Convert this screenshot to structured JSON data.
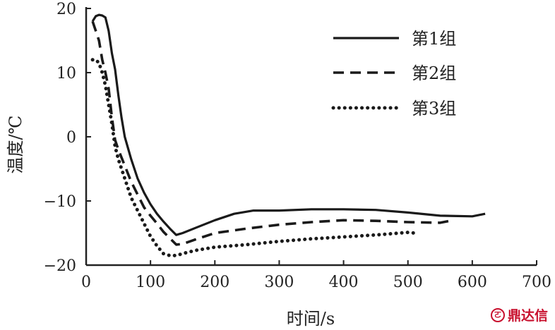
{
  "chart_data": {
    "type": "line",
    "title": "",
    "xlabel": "时间/s",
    "ylabel": "温度/℃",
    "xlim": [
      0,
      700
    ],
    "ylim": [
      -20,
      20
    ],
    "xticks": [
      0,
      100,
      200,
      300,
      400,
      500,
      600,
      700
    ],
    "yticks": [
      20,
      10,
      0,
      -10,
      -20
    ],
    "ytick_labels": [
      "20",
      "10",
      "0",
      "−10",
      "−20"
    ],
    "grid": false,
    "legend_position": "top-right",
    "series": [
      {
        "name": "第1组",
        "style": "solid",
        "x": [
          10,
          15,
          20,
          25,
          30,
          35,
          40,
          45,
          50,
          55,
          60,
          70,
          80,
          90,
          100,
          110,
          120,
          130,
          140,
          150,
          170,
          200,
          230,
          260,
          300,
          350,
          400,
          450,
          500,
          550,
          600,
          620
        ],
        "y": [
          18,
          18.8,
          19,
          18.9,
          18.6,
          16.5,
          13,
          10.5,
          6.5,
          3,
          0,
          -3.5,
          -6.5,
          -8.7,
          -10.5,
          -12,
          -13.2,
          -14.3,
          -15.3,
          -15,
          -14.2,
          -13,
          -12,
          -11.5,
          -11.5,
          -11.3,
          -11.3,
          -11.4,
          -11.8,
          -12.3,
          -12.4,
          -12
        ]
      },
      {
        "name": "第2组",
        "style": "dashed",
        "x": [
          10,
          15,
          20,
          25,
          30,
          35,
          40,
          45,
          50,
          60,
          70,
          80,
          90,
          100,
          110,
          120,
          130,
          140,
          150,
          170,
          200,
          250,
          300,
          350,
          400,
          450,
          500,
          550,
          570
        ],
        "y": [
          18,
          16.5,
          15,
          12,
          10,
          7.5,
          3,
          -0.5,
          -2,
          -4.5,
          -7,
          -9,
          -11,
          -12.3,
          -13.5,
          -14.8,
          -15.8,
          -16.8,
          -16.7,
          -16,
          -15,
          -14.3,
          -13.7,
          -13.3,
          -13,
          -13.1,
          -13.3,
          -13.4,
          -13
        ]
      },
      {
        "name": "第3组",
        "style": "dotted",
        "x": [
          10,
          15,
          20,
          25,
          30,
          35,
          40,
          45,
          50,
          60,
          70,
          80,
          90,
          100,
          110,
          120,
          130,
          140,
          150,
          170,
          200,
          250,
          300,
          350,
          400,
          450,
          500,
          510
        ],
        "y": [
          12,
          12,
          11.5,
          10,
          8,
          5,
          2,
          -1.5,
          -3.5,
          -6.5,
          -9.5,
          -11.5,
          -13.5,
          -15.5,
          -17,
          -18.2,
          -18.5,
          -18.5,
          -18.2,
          -17.7,
          -17.2,
          -16.8,
          -16.3,
          -15.9,
          -15.6,
          -15.3,
          -14.9,
          -15
        ]
      }
    ]
  },
  "watermark": {
    "icon": "logo-circle-icon",
    "text": "鼎达信"
  }
}
